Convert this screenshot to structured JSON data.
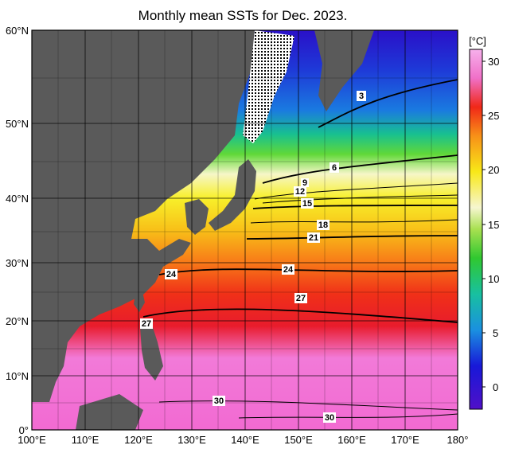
{
  "title": "Monthly mean SSTs for Dec. 2023.",
  "colorbar": {
    "unit": "[°C]",
    "ticks": [
      "0",
      "5",
      "10",
      "15",
      "20",
      "25",
      "30"
    ]
  },
  "lat_labels": [
    "60°N",
    "50°N",
    "40°N",
    "30°N",
    "20°N",
    "10°N",
    "0°"
  ],
  "lon_labels": [
    "100°E",
    "110°E",
    "120°E",
    "130°E",
    "140°E",
    "150°E",
    "160°E",
    "170°E",
    "180°"
  ],
  "contour_labels": [
    "3",
    "6",
    "9",
    "12",
    "15",
    "18",
    "21",
    "24",
    "24",
    "27",
    "27",
    "30",
    "30"
  ],
  "colors": {
    "land": "#5a5a5a",
    "grid": "#000000",
    "cold": "#2a10c8",
    "warm": "#f06ad2"
  }
}
